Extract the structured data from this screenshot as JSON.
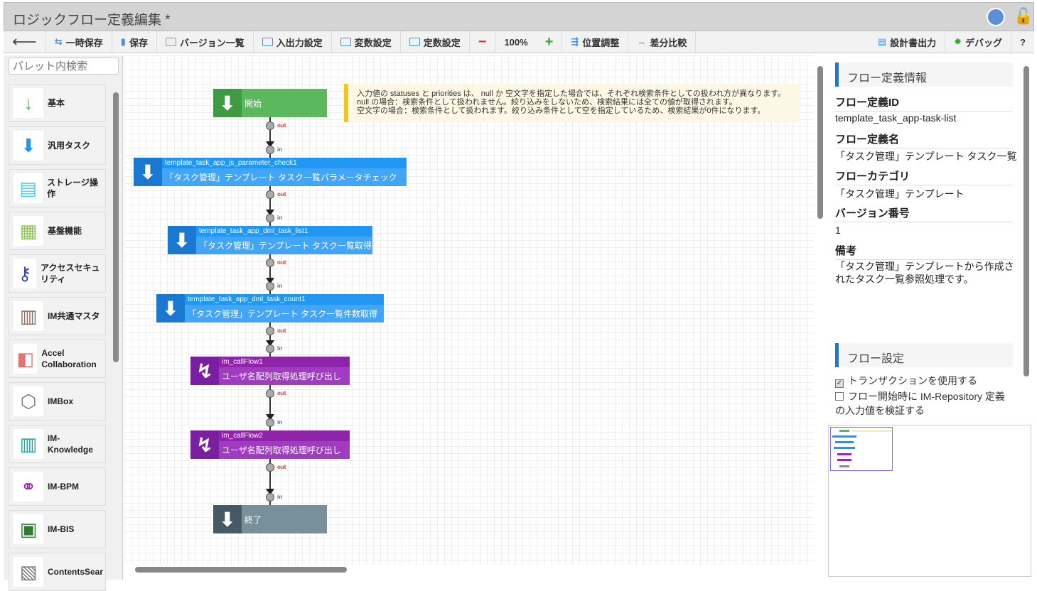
{
  "window": {
    "title": "ロジックフロー定義編集 *"
  },
  "toolbar": {
    "back": "🡐",
    "temp_save": "一時保存",
    "save": "保存",
    "versions": "バージョン一覧",
    "io": "入出力設定",
    "vars": "変数設定",
    "consts": "定数設定",
    "zoom_out": "−",
    "zoom": "100%",
    "zoom_in": "+",
    "align": "位置調整",
    "diff": "差分比較",
    "export": "設計書出力",
    "debug": "デバッグ",
    "help": "?"
  },
  "palette": {
    "search_placeholder": "パレット内検索",
    "items": [
      {
        "label": "基本",
        "icon": "↓",
        "color": "#4caf50"
      },
      {
        "label": "汎用タスク",
        "icon": "⬇",
        "color": "#2196f3"
      },
      {
        "label": "ストレージ操作",
        "icon": "▤",
        "color": "#4dd0e1"
      },
      {
        "label": "基盤機能",
        "icon": "▦",
        "color": "#8bc34a"
      },
      {
        "label": "アクセスセキュリティ",
        "icon": "⚷",
        "color": "#3949ab"
      },
      {
        "label": "IM共通マスタ",
        "icon": "▥",
        "color": "#8d6e63"
      },
      {
        "label": "Accel Collaboration",
        "icon": "◧",
        "color": "#e57373"
      },
      {
        "label": "IMBox",
        "icon": "⬡",
        "color": "#777777"
      },
      {
        "label": "IM-Knowledge",
        "icon": "▥",
        "color": "#26a69a"
      },
      {
        "label": "IM-BPM",
        "icon": "⚭",
        "color": "#9c27b0"
      },
      {
        "label": "IM-BIS",
        "icon": "▣",
        "color": "#2e7d32"
      },
      {
        "label": "ContentsSear",
        "icon": "▧",
        "color": "#777777"
      }
    ]
  },
  "note": {
    "lines": [
      "入力値の statuses と priorities は、 null か 空文字を指定した場合では、それぞれ検索条件としての扱われ方が異なります。",
      "null の場合：検索条件として扱われません。絞り込みをしないため、検索結果には全ての値が取得されます。",
      "空文字の場合：検索条件として扱われます。絞り込み条件として空を指定しているため、検索結果が0件になります。"
    ]
  },
  "flow": {
    "start": "開始",
    "end": "終了",
    "out": "out",
    "in": "in",
    "nodes": [
      {
        "id": "template_task_app_js_parameter_check1",
        "name": "「タスク管理」テンプレート タスク一覧パラメータチェック",
        "type": "task"
      },
      {
        "id": "template_task_app_dml_task_list1",
        "name": "「タスク管理」テンプレート タスク一覧取得",
        "type": "task"
      },
      {
        "id": "template_task_app_dml_task_count1",
        "name": "「タスク管理」テンプレート タスク一覧件数取得",
        "type": "task"
      },
      {
        "id": "im_callFlow1",
        "name": "ユーザ名配列取得処理呼び出し",
        "type": "call"
      },
      {
        "id": "im_callFlow2",
        "name": "ユーザ名配列取得処理呼び出し",
        "type": "call"
      }
    ]
  },
  "info": {
    "section": "フロー定義情報",
    "id_label": "フロー定義ID",
    "id": "template_task_app-task-list",
    "name_label": "フロー定義名",
    "name": "「タスク管理」テンプレート タスク一覧",
    "cat_label": "フローカテゴリ",
    "cat": "「タスク管理」テンプレート",
    "ver_label": "バージョン番号",
    "ver": "1",
    "note_label": "備考",
    "note": "「タスク管理」テンプレートから作成されたタスク一覧参照処理です。"
  },
  "settings": {
    "section": "フロー設定",
    "transaction": "トランザクションを使用する",
    "transaction_checked": true,
    "validate": "フロー開始時に IM-Repository 定義の入力値を検証する",
    "validate_checked": false
  }
}
